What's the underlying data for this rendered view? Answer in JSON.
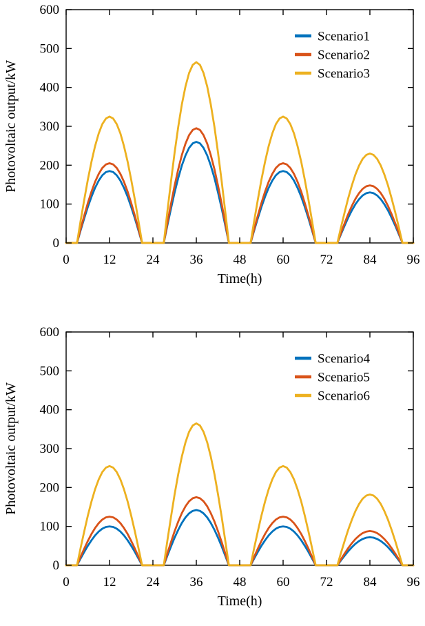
{
  "page": {
    "background": "#ffffff",
    "text_color": "#000000",
    "axis_color": "#000000"
  },
  "chart_data": [
    {
      "id": "pv-output-scenarios-1-3",
      "type": "line",
      "title": "",
      "xlabel": "Time(h)",
      "ylabel": "Photovoltaic output/kW",
      "xlim": [
        0,
        96
      ],
      "ylim": [
        0,
        600
      ],
      "xticks": [
        0,
        12,
        24,
        36,
        48,
        60,
        72,
        84,
        96
      ],
      "yticks": [
        0,
        100,
        200,
        300,
        400,
        500,
        600
      ],
      "grid": false,
      "legend_position": "upper-right-inside",
      "x_unit": "h",
      "y_unit": "kW",
      "sampling": "hourly points h=0..96; value = day_peaks_kw[day] * daily_shape[h mod 24]",
      "daily_shape": [
        0,
        0,
        0,
        0,
        0.174,
        0.342,
        0.5,
        0.643,
        0.766,
        0.866,
        0.94,
        0.985,
        1,
        0.985,
        0.94,
        0.866,
        0.766,
        0.643,
        0.5,
        0.342,
        0.174,
        0,
        0,
        0
      ],
      "series": [
        {
          "name": "Scenario1",
          "color": "#0072BD",
          "day_peaks_kw": [
            185,
            260,
            185,
            130
          ]
        },
        {
          "name": "Scenario2",
          "color": "#D95319",
          "day_peaks_kw": [
            205,
            295,
            205,
            148
          ]
        },
        {
          "name": "Scenario3",
          "color": "#EDB120",
          "day_peaks_kw": [
            325,
            465,
            325,
            230
          ]
        }
      ]
    },
    {
      "id": "pv-output-scenarios-4-6",
      "type": "line",
      "title": "",
      "xlabel": "Time(h)",
      "ylabel": "Photovoltaic output/kW",
      "xlim": [
        0,
        96
      ],
      "ylim": [
        0,
        600
      ],
      "xticks": [
        0,
        12,
        24,
        36,
        48,
        60,
        72,
        84,
        96
      ],
      "yticks": [
        0,
        100,
        200,
        300,
        400,
        500,
        600
      ],
      "grid": false,
      "legend_position": "upper-right-inside",
      "x_unit": "h",
      "y_unit": "kW",
      "sampling": "hourly points h=0..96; value = day_peaks_kw[day] * daily_shape[h mod 24]",
      "daily_shape": [
        0,
        0,
        0,
        0,
        0.174,
        0.342,
        0.5,
        0.643,
        0.766,
        0.866,
        0.94,
        0.985,
        1,
        0.985,
        0.94,
        0.866,
        0.766,
        0.643,
        0.5,
        0.342,
        0.174,
        0,
        0,
        0
      ],
      "series": [
        {
          "name": "Scenario4",
          "color": "#0072BD",
          "day_peaks_kw": [
            100,
            142,
            100,
            72
          ]
        },
        {
          "name": "Scenario5",
          "color": "#D95319",
          "day_peaks_kw": [
            125,
            175,
            125,
            88
          ]
        },
        {
          "name": "Scenario6",
          "color": "#EDB120",
          "day_peaks_kw": [
            255,
            365,
            255,
            182
          ]
        }
      ]
    }
  ]
}
